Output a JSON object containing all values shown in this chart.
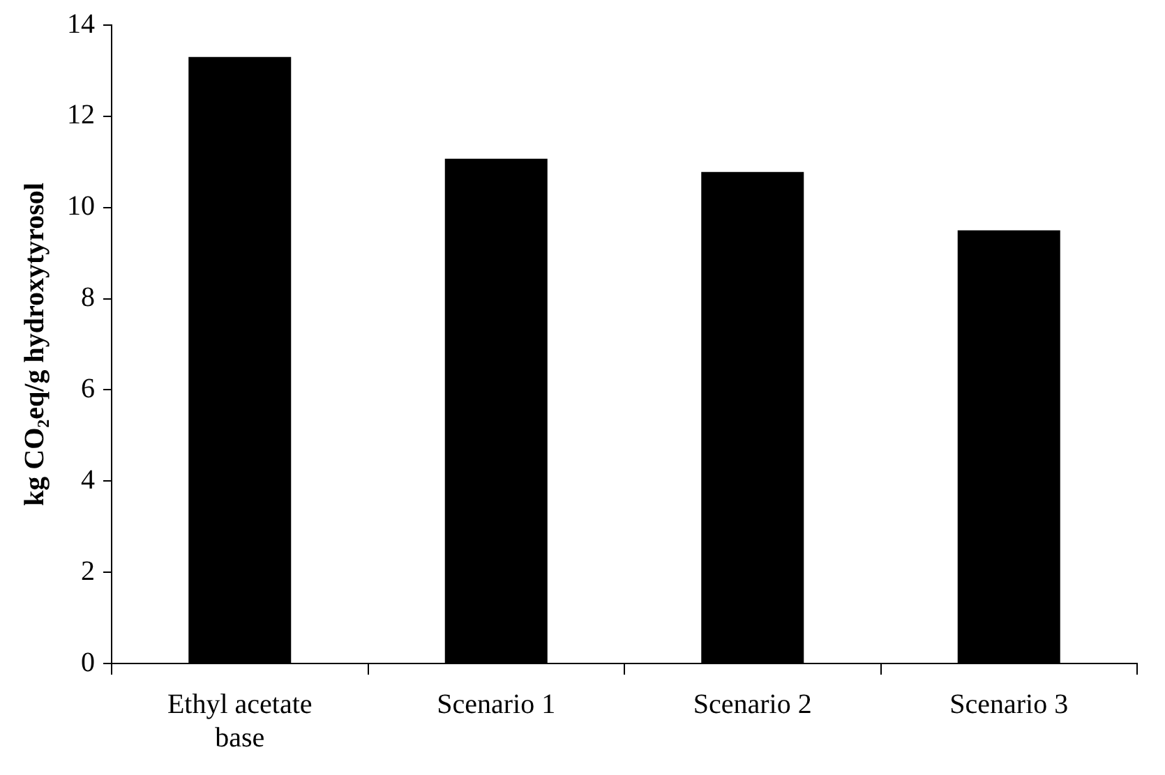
{
  "chart_data": {
    "type": "bar",
    "ylabel": "kg CO₂eq/g hydroxytyrosol",
    "categories": [
      "Ethyl acetate base",
      "Scenario 1",
      "Scenario 2",
      "Scenario 3"
    ],
    "values": [
      13.3,
      11.07,
      10.78,
      9.5
    ],
    "color": "#000000",
    "ylim": [
      0,
      14
    ],
    "yticks": [
      0,
      2,
      4,
      6,
      8,
      10,
      12,
      14
    ],
    "grid": false,
    "legend": false
  }
}
